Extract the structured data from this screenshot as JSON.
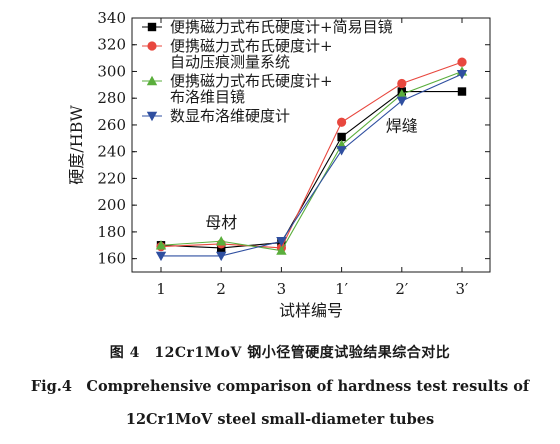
{
  "chart_data": {
    "type": "line",
    "categories": [
      "1",
      "2",
      "3",
      "1′",
      "2′",
      "3′"
    ],
    "ylabel": "硬度/HBW",
    "xlabel": "试样编号",
    "ylim": [
      150,
      340
    ],
    "yticks": [
      160,
      180,
      200,
      220,
      240,
      260,
      280,
      300,
      320,
      340
    ],
    "legend_position": "top-left",
    "series": [
      {
        "name": "便携磁力式布氏硬度计+简易目镜",
        "color": "#000000",
        "marker": "square",
        "values": [
          170,
          168,
          172,
          251,
          285,
          285
        ]
      },
      {
        "name": "便携磁力式布氏硬度计+自动压痕测量系统",
        "color": "#e8473e",
        "marker": "circle",
        "values": [
          169,
          171,
          168,
          262,
          291,
          307
        ]
      },
      {
        "name": "便携磁力式布氏硬度计+布洛维目镜",
        "color": "#5aae3c",
        "marker": "triangle-up",
        "values": [
          170,
          173,
          166,
          245,
          283,
          300
        ]
      },
      {
        "name": "数显布洛维硬度计",
        "color": "#2f4fa0",
        "marker": "triangle-down",
        "values": [
          162,
          162,
          173,
          241,
          278,
          298
        ]
      }
    ],
    "annotations": [
      {
        "text": "母材",
        "x": "2",
        "y": 183
      },
      {
        "text": "焊缝",
        "x": "2′",
        "y": 255
      }
    ]
  },
  "legend_lines": [
    [
      "便携磁力式布氏硬度计+简易目镜"
    ],
    [
      "便携磁力式布氏硬度计+",
      "自动压痕测量系统"
    ],
    [
      "便携磁力式布氏硬度计+",
      "布洛维目镜"
    ],
    [
      "数显布洛维硬度计"
    ]
  ],
  "caption": {
    "cn": "图 4　12Cr1MoV 钢小径管硬度试验结果综合对比",
    "en_line1": "Fig.4　Comprehensive comparison of hardness test results of",
    "en_line2": "12Cr1MoV steel small-diameter tubes"
  }
}
